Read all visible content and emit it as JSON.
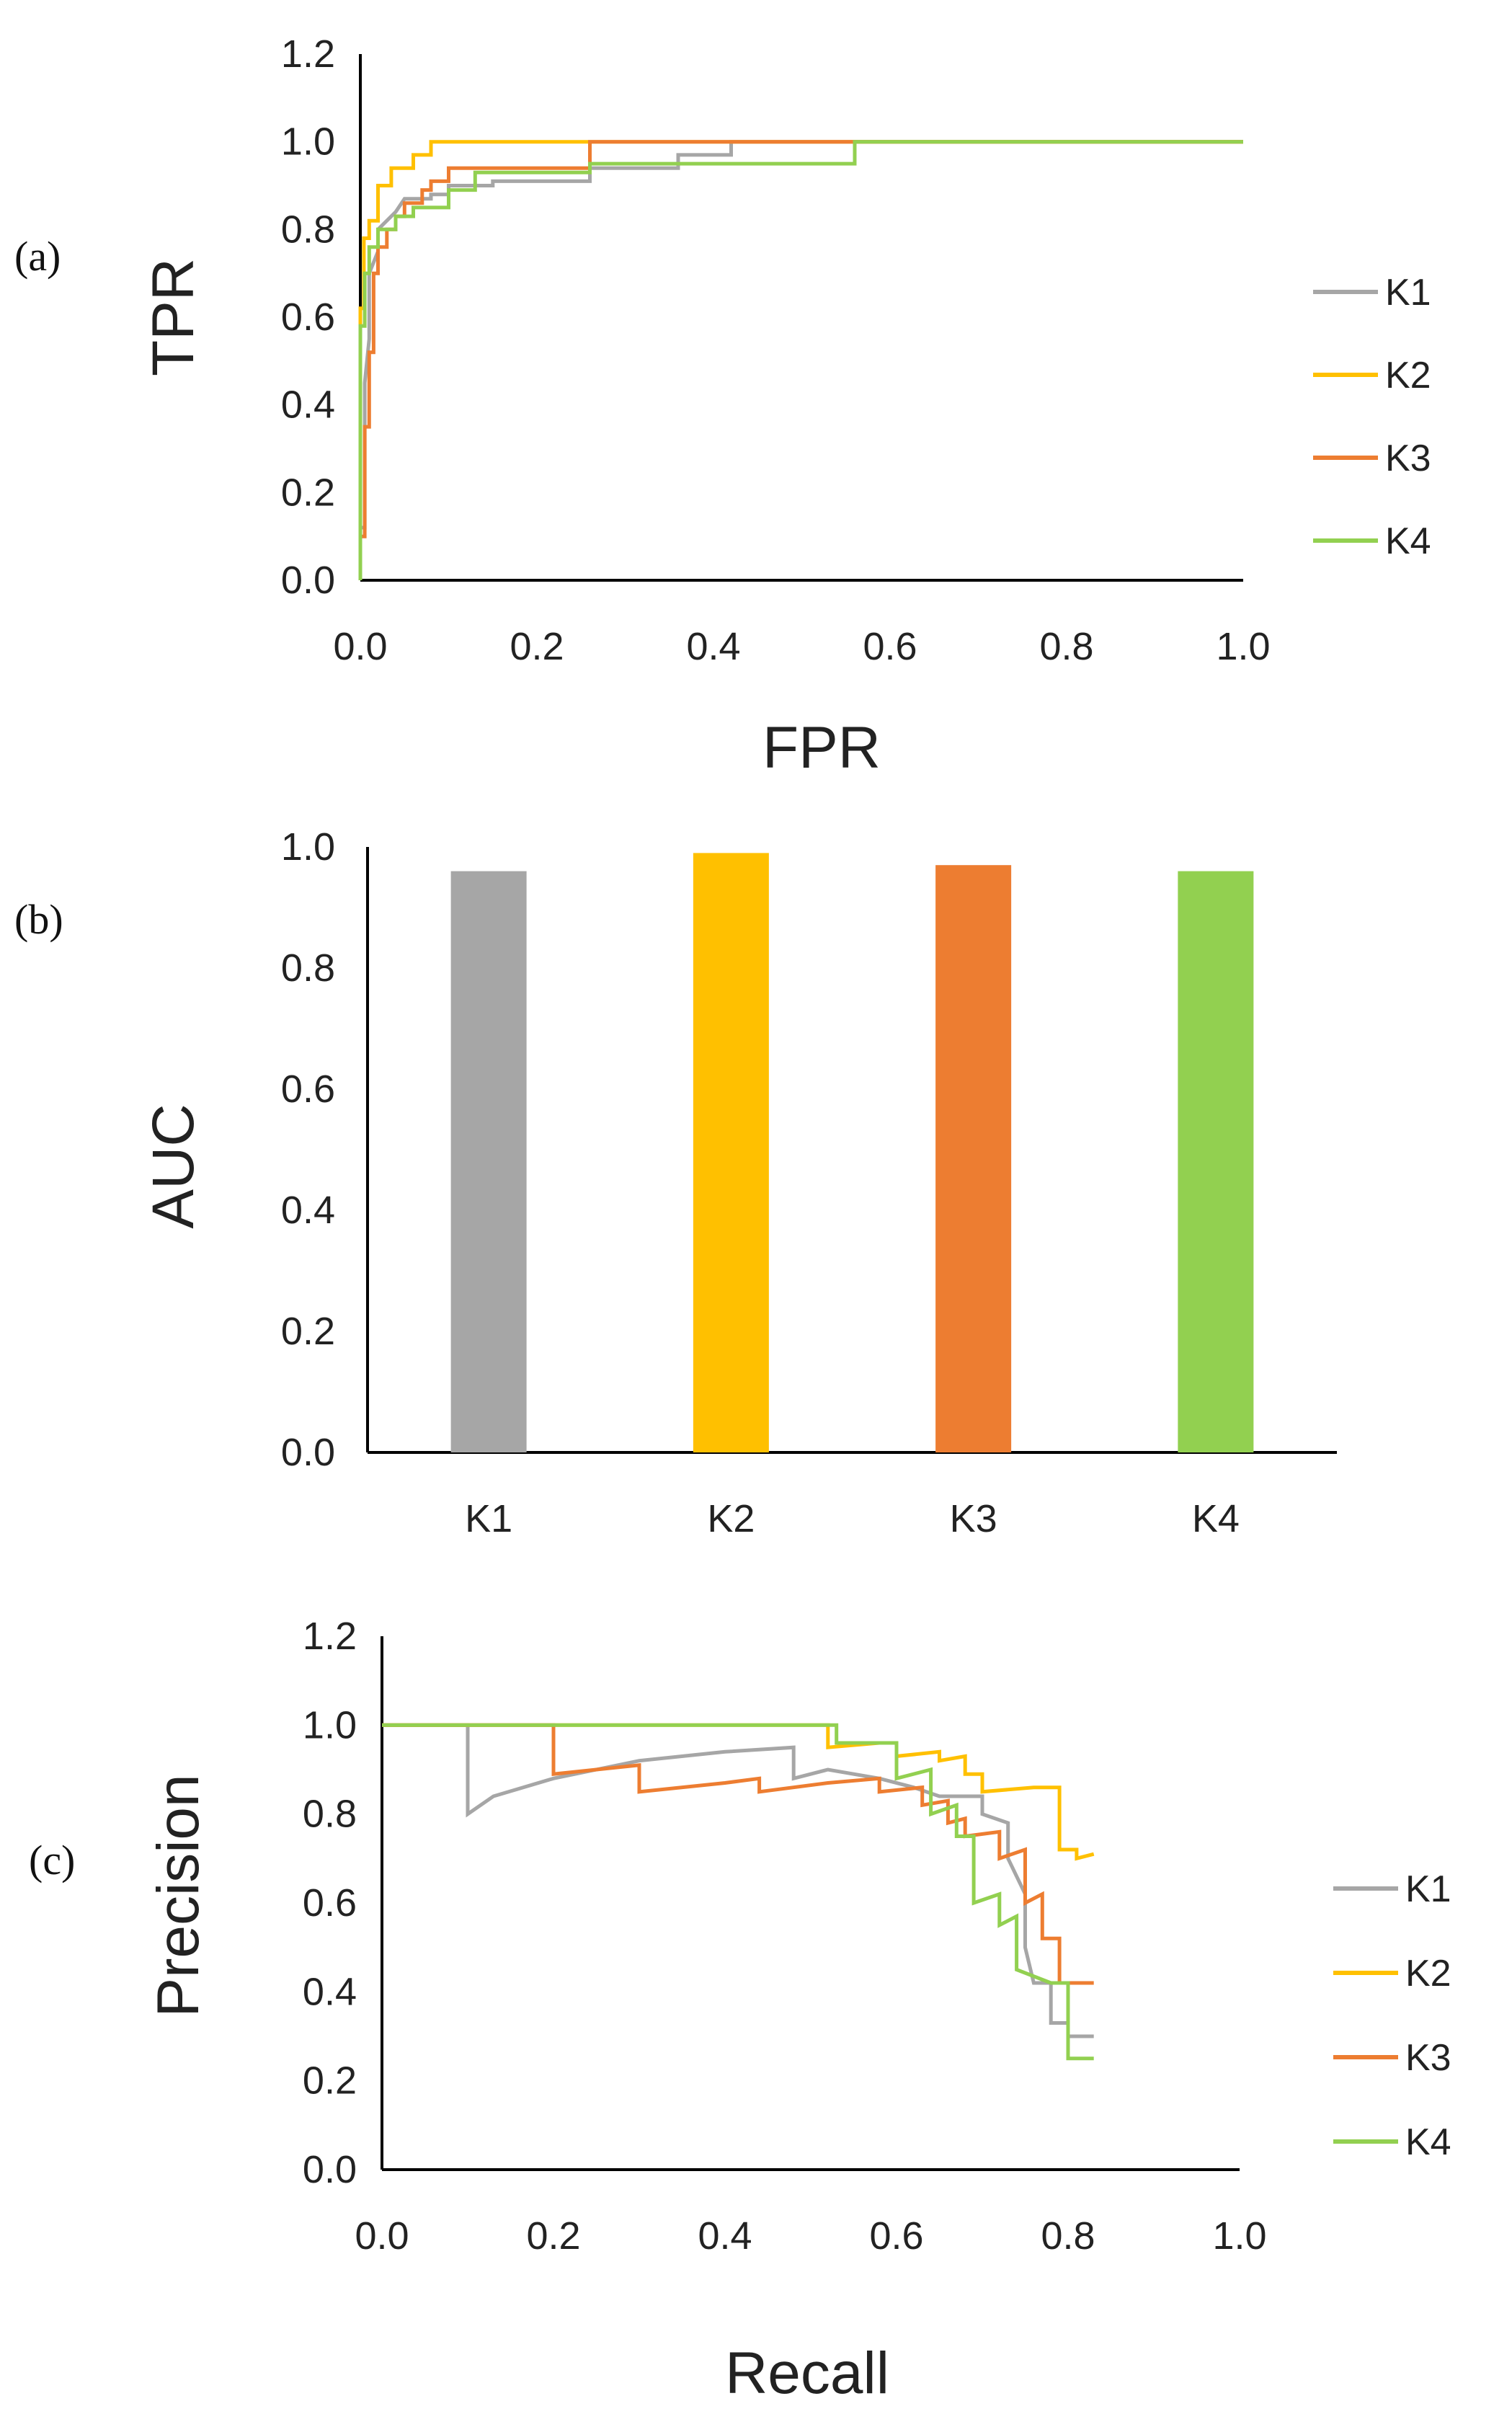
{
  "colors": {
    "K1": "#A6A6A6",
    "K2": "#FFC000",
    "K3": "#ED7D31",
    "K4": "#92D050"
  },
  "chart_data": [
    {
      "id": "roc",
      "panel_label": "(a)",
      "type": "line",
      "title": "",
      "xlabel": "FPR",
      "ylabel": "TPR",
      "xlim": [
        0,
        1.0
      ],
      "ylim": [
        0,
        1.2
      ],
      "x_ticks": [
        "0.0",
        "0.2",
        "0.4",
        "0.6",
        "0.8",
        "1.0"
      ],
      "y_ticks": [
        "0.0",
        "0.2",
        "0.4",
        "0.6",
        "0.8",
        "1.0",
        "1.2"
      ],
      "legend": [
        "K1",
        "K2",
        "K3",
        "K4"
      ],
      "legend_position": "right",
      "series": [
        {
          "name": "K1",
          "points": [
            [
              0,
              0
            ],
            [
              0,
              0.12
            ],
            [
              0.005,
              0.12
            ],
            [
              0.005,
              0.45
            ],
            [
              0.01,
              0.55
            ],
            [
              0.01,
              0.7
            ],
            [
              0.02,
              0.75
            ],
            [
              0.02,
              0.8
            ],
            [
              0.04,
              0.84
            ],
            [
              0.05,
              0.87
            ],
            [
              0.08,
              0.87
            ],
            [
              0.08,
              0.88
            ],
            [
              0.1,
              0.88
            ],
            [
              0.1,
              0.9
            ],
            [
              0.15,
              0.9
            ],
            [
              0.15,
              0.91
            ],
            [
              0.26,
              0.91
            ],
            [
              0.26,
              0.94
            ],
            [
              0.36,
              0.94
            ],
            [
              0.36,
              0.97
            ],
            [
              0.42,
              0.97
            ],
            [
              0.42,
              1.0
            ],
            [
              1.0,
              1.0
            ]
          ]
        },
        {
          "name": "K2",
          "points": [
            [
              0,
              0
            ],
            [
              0,
              0.62
            ],
            [
              0.004,
              0.62
            ],
            [
              0.004,
              0.78
            ],
            [
              0.01,
              0.78
            ],
            [
              0.01,
              0.82
            ],
            [
              0.02,
              0.82
            ],
            [
              0.02,
              0.9
            ],
            [
              0.035,
              0.9
            ],
            [
              0.035,
              0.94
            ],
            [
              0.06,
              0.94
            ],
            [
              0.06,
              0.97
            ],
            [
              0.08,
              0.97
            ],
            [
              0.08,
              1.0
            ],
            [
              1.0,
              1.0
            ]
          ]
        },
        {
          "name": "K3",
          "points": [
            [
              0,
              0
            ],
            [
              0,
              0.1
            ],
            [
              0.005,
              0.1
            ],
            [
              0.005,
              0.35
            ],
            [
              0.01,
              0.35
            ],
            [
              0.01,
              0.52
            ],
            [
              0.015,
              0.52
            ],
            [
              0.015,
              0.7
            ],
            [
              0.02,
              0.7
            ],
            [
              0.02,
              0.76
            ],
            [
              0.03,
              0.76
            ],
            [
              0.03,
              0.8
            ],
            [
              0.04,
              0.8
            ],
            [
              0.04,
              0.83
            ],
            [
              0.05,
              0.83
            ],
            [
              0.05,
              0.86
            ],
            [
              0.07,
              0.86
            ],
            [
              0.07,
              0.89
            ],
            [
              0.08,
              0.89
            ],
            [
              0.08,
              0.91
            ],
            [
              0.1,
              0.91
            ],
            [
              0.1,
              0.94
            ],
            [
              0.26,
              0.94
            ],
            [
              0.26,
              1.0
            ],
            [
              1.0,
              1.0
            ]
          ]
        },
        {
          "name": "K4",
          "points": [
            [
              0,
              0
            ],
            [
              0,
              0.58
            ],
            [
              0.005,
              0.58
            ],
            [
              0.005,
              0.7
            ],
            [
              0.01,
              0.7
            ],
            [
              0.01,
              0.76
            ],
            [
              0.02,
              0.76
            ],
            [
              0.02,
              0.8
            ],
            [
              0.04,
              0.8
            ],
            [
              0.04,
              0.83
            ],
            [
              0.06,
              0.83
            ],
            [
              0.06,
              0.85
            ],
            [
              0.1,
              0.85
            ],
            [
              0.1,
              0.89
            ],
            [
              0.13,
              0.89
            ],
            [
              0.13,
              0.93
            ],
            [
              0.26,
              0.93
            ],
            [
              0.26,
              0.95
            ],
            [
              0.56,
              0.95
            ],
            [
              0.56,
              1.0
            ],
            [
              1.0,
              1.0
            ]
          ]
        }
      ]
    },
    {
      "id": "auc",
      "panel_label": "(b)",
      "type": "bar",
      "title": "",
      "xlabel": "",
      "ylabel": "AUC",
      "ylim": [
        0,
        1.0
      ],
      "y_ticks": [
        "0.0",
        "0.2",
        "0.4",
        "0.6",
        "0.8",
        "1.0"
      ],
      "categories": [
        "K1",
        "K2",
        "K3",
        "K4"
      ],
      "values": [
        0.96,
        0.99,
        0.97,
        0.96
      ]
    },
    {
      "id": "pr",
      "panel_label": "(c)",
      "type": "line",
      "title": "",
      "xlabel": "Recall",
      "ylabel": "Precision",
      "xlim": [
        0,
        1.0
      ],
      "ylim": [
        0,
        1.2
      ],
      "x_ticks": [
        "0.0",
        "0.2",
        "0.4",
        "0.6",
        "0.8",
        "1.0"
      ],
      "y_ticks": [
        "0.0",
        "0.2",
        "0.4",
        "0.6",
        "0.8",
        "1.0",
        "1.2"
      ],
      "legend": [
        "K1",
        "K2",
        "K3",
        "K4"
      ],
      "legend_position": "right",
      "series": [
        {
          "name": "K1",
          "points": [
            [
              0,
              1.0
            ],
            [
              0.1,
              1.0
            ],
            [
              0.1,
              0.8
            ],
            [
              0.13,
              0.84
            ],
            [
              0.2,
              0.88
            ],
            [
              0.3,
              0.92
            ],
            [
              0.4,
              0.94
            ],
            [
              0.48,
              0.95
            ],
            [
              0.48,
              0.88
            ],
            [
              0.52,
              0.9
            ],
            [
              0.58,
              0.88
            ],
            [
              0.62,
              0.86
            ],
            [
              0.65,
              0.84
            ],
            [
              0.7,
              0.84
            ],
            [
              0.7,
              0.8
            ],
            [
              0.73,
              0.78
            ],
            [
              0.73,
              0.7
            ],
            [
              0.75,
              0.62
            ],
            [
              0.75,
              0.5
            ],
            [
              0.76,
              0.42
            ],
            [
              0.78,
              0.42
            ],
            [
              0.78,
              0.33
            ],
            [
              0.8,
              0.33
            ],
            [
              0.8,
              0.3
            ],
            [
              0.83,
              0.3
            ]
          ]
        },
        {
          "name": "K2",
          "points": [
            [
              0,
              1.0
            ],
            [
              0.52,
              1.0
            ],
            [
              0.52,
              0.95
            ],
            [
              0.58,
              0.96
            ],
            [
              0.6,
              0.96
            ],
            [
              0.6,
              0.93
            ],
            [
              0.65,
              0.94
            ],
            [
              0.65,
              0.92
            ],
            [
              0.68,
              0.93
            ],
            [
              0.68,
              0.89
            ],
            [
              0.7,
              0.89
            ],
            [
              0.7,
              0.85
            ],
            [
              0.76,
              0.86
            ],
            [
              0.79,
              0.86
            ],
            [
              0.79,
              0.72
            ],
            [
              0.81,
              0.72
            ],
            [
              0.81,
              0.7
            ],
            [
              0.83,
              0.71
            ]
          ]
        },
        {
          "name": "K3",
          "points": [
            [
              0,
              1.0
            ],
            [
              0.2,
              1.0
            ],
            [
              0.2,
              0.89
            ],
            [
              0.3,
              0.91
            ],
            [
              0.3,
              0.85
            ],
            [
              0.4,
              0.87
            ],
            [
              0.44,
              0.88
            ],
            [
              0.44,
              0.85
            ],
            [
              0.52,
              0.87
            ],
            [
              0.58,
              0.88
            ],
            [
              0.58,
              0.85
            ],
            [
              0.63,
              0.86
            ],
            [
              0.63,
              0.82
            ],
            [
              0.66,
              0.83
            ],
            [
              0.66,
              0.78
            ],
            [
              0.68,
              0.79
            ],
            [
              0.68,
              0.75
            ],
            [
              0.72,
              0.76
            ],
            [
              0.72,
              0.7
            ],
            [
              0.75,
              0.72
            ],
            [
              0.75,
              0.6
            ],
            [
              0.77,
              0.62
            ],
            [
              0.77,
              0.52
            ],
            [
              0.79,
              0.52
            ],
            [
              0.79,
              0.42
            ],
            [
              0.81,
              0.42
            ],
            [
              0.83,
              0.42
            ]
          ]
        },
        {
          "name": "K4",
          "points": [
            [
              0,
              1.0
            ],
            [
              0.53,
              1.0
            ],
            [
              0.53,
              0.96
            ],
            [
              0.6,
              0.96
            ],
            [
              0.6,
              0.88
            ],
            [
              0.64,
              0.9
            ],
            [
              0.64,
              0.8
            ],
            [
              0.67,
              0.82
            ],
            [
              0.67,
              0.75
            ],
            [
              0.69,
              0.75
            ],
            [
              0.69,
              0.6
            ],
            [
              0.72,
              0.62
            ],
            [
              0.72,
              0.55
            ],
            [
              0.74,
              0.57
            ],
            [
              0.74,
              0.45
            ],
            [
              0.78,
              0.42
            ],
            [
              0.8,
              0.42
            ],
            [
              0.8,
              0.25
            ],
            [
              0.83,
              0.25
            ]
          ]
        }
      ]
    }
  ]
}
